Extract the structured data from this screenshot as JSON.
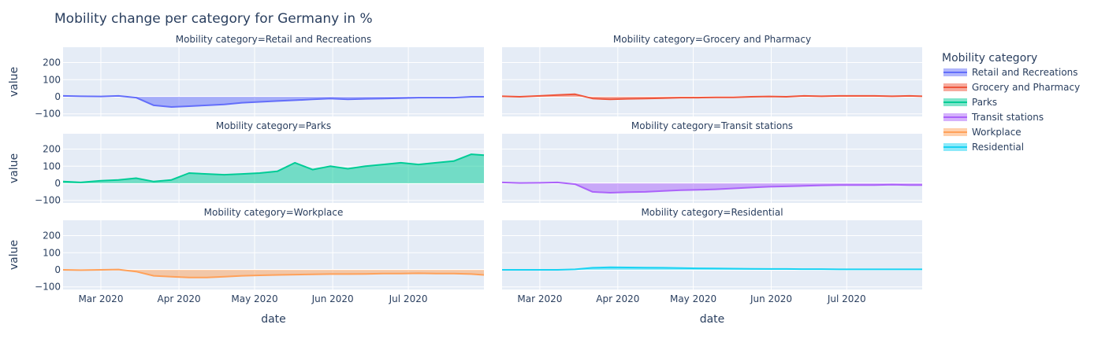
{
  "chart_data": {
    "type": "area",
    "title": "Mobility change per category for Germany in %",
    "xlabel": "date",
    "ylabel": "value",
    "x_ticks": [
      "Mar 2020",
      "Apr 2020",
      "May 2020",
      "Jun 2020",
      "Jul 2020"
    ],
    "y_ticks": [
      "−100",
      "0",
      "100",
      "200"
    ],
    "ylim": [
      -115,
      290
    ],
    "x_range": [
      "2020-02-15",
      "2020-07-31"
    ],
    "grid": true,
    "legend": {
      "title": "Mobility category",
      "placement": "right"
    },
    "x": [
      "2020-02-15",
      "2020-02-22",
      "2020-03-01",
      "2020-03-08",
      "2020-03-15",
      "2020-03-22",
      "2020-03-29",
      "2020-04-05",
      "2020-04-12",
      "2020-04-19",
      "2020-04-26",
      "2020-05-03",
      "2020-05-10",
      "2020-05-17",
      "2020-05-24",
      "2020-05-31",
      "2020-06-07",
      "2020-06-14",
      "2020-06-21",
      "2020-06-28",
      "2020-07-05",
      "2020-07-12",
      "2020-07-19",
      "2020-07-26",
      "2020-07-31"
    ],
    "series": [
      {
        "name": "Retail and Recreations",
        "facet_label": "Mobility category=Retail and Recreations",
        "color": "#636efa",
        "fill": "rgba(99,110,250,0.5)",
        "values": [
          5,
          3,
          2,
          5,
          -5,
          -50,
          -60,
          -55,
          -50,
          -45,
          -35,
          -30,
          -25,
          -20,
          -15,
          -10,
          -15,
          -12,
          -10,
          -8,
          -5,
          -5,
          -5,
          0,
          0
        ]
      },
      {
        "name": "Grocery and Pharmacy",
        "facet_label": "Mobility category=Grocery and Pharmacy",
        "color": "#ef553b",
        "fill": "rgba(239,85,59,0.5)",
        "values": [
          3,
          0,
          5,
          10,
          15,
          -10,
          -15,
          -12,
          -10,
          -8,
          -5,
          -5,
          -3,
          -3,
          0,
          2,
          0,
          5,
          3,
          5,
          5,
          5,
          3,
          5,
          3
        ]
      },
      {
        "name": "Parks",
        "facet_label": "Mobility category=Parks",
        "color": "#00cc96",
        "fill": "rgba(0,204,150,0.5)",
        "values": [
          10,
          5,
          15,
          20,
          30,
          10,
          20,
          60,
          55,
          50,
          55,
          60,
          70,
          120,
          80,
          100,
          85,
          100,
          110,
          120,
          110,
          120,
          130,
          170,
          165
        ]
      },
      {
        "name": "Transit stations",
        "facet_label": "Mobility category=Transit stations",
        "color": "#ab63fa",
        "fill": "rgba(171,99,250,0.5)",
        "values": [
          5,
          2,
          3,
          5,
          -5,
          -50,
          -55,
          -52,
          -50,
          -45,
          -40,
          -38,
          -35,
          -30,
          -25,
          -20,
          -18,
          -15,
          -12,
          -10,
          -10,
          -10,
          -8,
          -10,
          -10
        ]
      },
      {
        "name": "Workplace",
        "facet_label": "Mobility category=Workplace",
        "color": "#ffa15a",
        "fill": "rgba(255,161,90,0.5)",
        "values": [
          0,
          -2,
          0,
          2,
          -10,
          -35,
          -40,
          -45,
          -45,
          -40,
          -35,
          -32,
          -30,
          -28,
          -26,
          -25,
          -25,
          -24,
          -22,
          -22,
          -20,
          -22,
          -22,
          -25,
          -30
        ]
      },
      {
        "name": "Residential",
        "facet_label": "Mobility category=Residential",
        "color": "#19d3f3",
        "fill": "rgba(25,211,243,0.5)",
        "values": [
          0,
          0,
          0,
          0,
          3,
          12,
          15,
          14,
          13,
          12,
          10,
          9,
          8,
          7,
          6,
          5,
          5,
          4,
          4,
          3,
          3,
          3,
          3,
          3,
          3
        ]
      }
    ]
  }
}
